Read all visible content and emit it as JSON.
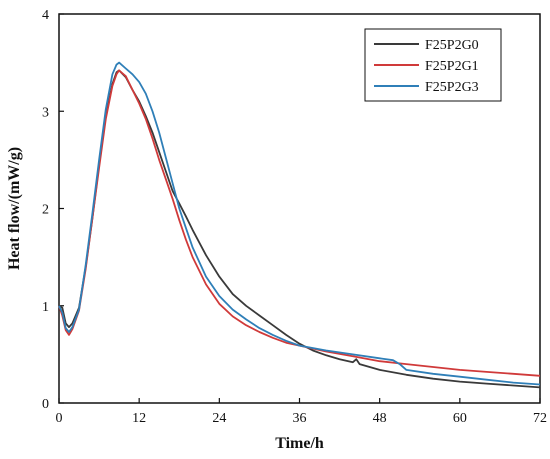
{
  "chart_data": {
    "type": "line",
    "title": "",
    "xlabel": "Time/h",
    "ylabel": "Heat flow/(mW/g)",
    "xlim": [
      0,
      72
    ],
    "ylim": [
      0,
      4
    ],
    "xticks": [
      0,
      12,
      24,
      36,
      48,
      60,
      72
    ],
    "yticks": [
      0,
      1,
      2,
      3,
      4
    ],
    "grid": false,
    "legend_position": "top-right",
    "series": [
      {
        "name": "F25P2G0",
        "color": "#3a3a3a",
        "points": [
          [
            0,
            1.0
          ],
          [
            0.5,
            0.98
          ],
          [
            1,
            0.82
          ],
          [
            1.5,
            0.78
          ],
          [
            2,
            0.82
          ],
          [
            3,
            0.98
          ],
          [
            4,
            1.4
          ],
          [
            5,
            1.9
          ],
          [
            6,
            2.45
          ],
          [
            7,
            2.95
          ],
          [
            8,
            3.28
          ],
          [
            8.6,
            3.4
          ],
          [
            9,
            3.42
          ],
          [
            10,
            3.35
          ],
          [
            11,
            3.22
          ],
          [
            12,
            3.1
          ],
          [
            13,
            2.95
          ],
          [
            14,
            2.78
          ],
          [
            15,
            2.58
          ],
          [
            16,
            2.38
          ],
          [
            17,
            2.18
          ],
          [
            18,
            2.05
          ],
          [
            19,
            1.92
          ],
          [
            20,
            1.78
          ],
          [
            22,
            1.52
          ],
          [
            24,
            1.3
          ],
          [
            26,
            1.12
          ],
          [
            28,
            1.0
          ],
          [
            30,
            0.9
          ],
          [
            32,
            0.8
          ],
          [
            34,
            0.7
          ],
          [
            36,
            0.61
          ],
          [
            38,
            0.54
          ],
          [
            40,
            0.49
          ],
          [
            42,
            0.45
          ],
          [
            44,
            0.42
          ],
          [
            44.5,
            0.45
          ],
          [
            45,
            0.4
          ],
          [
            48,
            0.34
          ],
          [
            52,
            0.29
          ],
          [
            56,
            0.25
          ],
          [
            60,
            0.22
          ],
          [
            64,
            0.2
          ],
          [
            68,
            0.18
          ],
          [
            72,
            0.16
          ]
        ]
      },
      {
        "name": "F25P2G1",
        "color": "#d03a3a",
        "points": [
          [
            0,
            1.0
          ],
          [
            0.5,
            0.9
          ],
          [
            1,
            0.75
          ],
          [
            1.5,
            0.7
          ],
          [
            2,
            0.76
          ],
          [
            3,
            0.95
          ],
          [
            4,
            1.38
          ],
          [
            5,
            1.9
          ],
          [
            6,
            2.42
          ],
          [
            7,
            2.92
          ],
          [
            8,
            3.26
          ],
          [
            8.6,
            3.38
          ],
          [
            9,
            3.42
          ],
          [
            10,
            3.36
          ],
          [
            11,
            3.22
          ],
          [
            12,
            3.08
          ],
          [
            13,
            2.92
          ],
          [
            14,
            2.72
          ],
          [
            15,
            2.5
          ],
          [
            16,
            2.3
          ],
          [
            17,
            2.1
          ],
          [
            18,
            1.88
          ],
          [
            19,
            1.68
          ],
          [
            20,
            1.5
          ],
          [
            22,
            1.22
          ],
          [
            24,
            1.02
          ],
          [
            26,
            0.89
          ],
          [
            28,
            0.8
          ],
          [
            30,
            0.73
          ],
          [
            32,
            0.67
          ],
          [
            34,
            0.62
          ],
          [
            36,
            0.59
          ],
          [
            40,
            0.53
          ],
          [
            44,
            0.48
          ],
          [
            48,
            0.43
          ],
          [
            52,
            0.4
          ],
          [
            56,
            0.37
          ],
          [
            60,
            0.34
          ],
          [
            64,
            0.32
          ],
          [
            68,
            0.3
          ],
          [
            72,
            0.28
          ]
        ]
      },
      {
        "name": "F25P2G3",
        "color": "#2f7fb8",
        "points": [
          [
            0,
            1.0
          ],
          [
            0.5,
            0.93
          ],
          [
            1,
            0.77
          ],
          [
            1.5,
            0.73
          ],
          [
            2,
            0.78
          ],
          [
            3,
            0.96
          ],
          [
            4,
            1.42
          ],
          [
            5,
            1.95
          ],
          [
            6,
            2.5
          ],
          [
            7,
            3.02
          ],
          [
            8,
            3.38
          ],
          [
            8.6,
            3.48
          ],
          [
            9,
            3.5
          ],
          [
            10,
            3.44
          ],
          [
            11,
            3.38
          ],
          [
            12,
            3.3
          ],
          [
            13,
            3.18
          ],
          [
            14,
            3.0
          ],
          [
            15,
            2.78
          ],
          [
            16,
            2.52
          ],
          [
            17,
            2.26
          ],
          [
            18,
            2.0
          ],
          [
            19,
            1.8
          ],
          [
            20,
            1.6
          ],
          [
            22,
            1.3
          ],
          [
            24,
            1.1
          ],
          [
            26,
            0.96
          ],
          [
            28,
            0.86
          ],
          [
            30,
            0.77
          ],
          [
            32,
            0.7
          ],
          [
            34,
            0.64
          ],
          [
            36,
            0.59
          ],
          [
            40,
            0.54
          ],
          [
            44,
            0.5
          ],
          [
            48,
            0.46
          ],
          [
            50,
            0.44
          ],
          [
            51,
            0.4
          ],
          [
            52,
            0.34
          ],
          [
            56,
            0.3
          ],
          [
            60,
            0.27
          ],
          [
            64,
            0.24
          ],
          [
            68,
            0.21
          ],
          [
            72,
            0.19
          ]
        ]
      }
    ]
  }
}
